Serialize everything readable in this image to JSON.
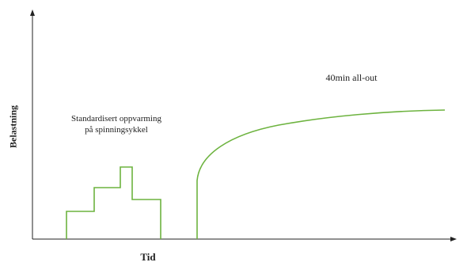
{
  "diagram": {
    "y_axis_label": "Belastning",
    "x_axis_label": "Tid",
    "warmup_label_line1": "Standardisert oppvarming",
    "warmup_label_line2": "på spinningsykkel",
    "allout_label": "40min all-out",
    "colors": {
      "axis": "#222222",
      "curve": "#6db33f",
      "text": "#222222"
    }
  }
}
